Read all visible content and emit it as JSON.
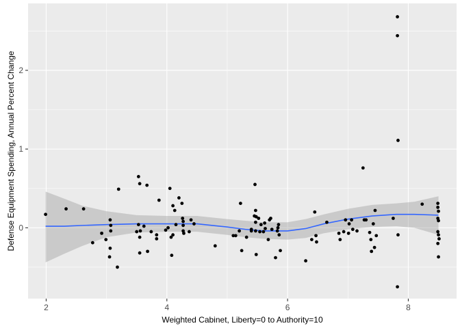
{
  "chart_data": {
    "type": "scatter",
    "title": "",
    "xlabel": "Weighted Cabinet, Liberty=0 to Authority=10",
    "ylabel": "Defense Equipment Spending, Annual Percent Change",
    "xlim": [
      1.7,
      8.8
    ],
    "ylim": [
      -0.9,
      2.85
    ],
    "x_ticks": [
      2,
      4,
      6,
      8
    ],
    "y_ticks": [
      0,
      1,
      2
    ],
    "grid": true,
    "legend": "none",
    "colors": {
      "panel": "#ebebeb",
      "grid": "#ffffff",
      "points": "#000000",
      "smooth_line": "#3366ff",
      "ribbon": "#999999"
    },
    "points": [
      [
        1.99,
        0.17
      ],
      [
        2.33,
        0.24
      ],
      [
        2.62,
        0.24
      ],
      [
        2.77,
        -0.19
      ],
      [
        2.92,
        -0.07
      ],
      [
        2.99,
        -0.15
      ],
      [
        3.05,
        -0.37
      ],
      [
        3.06,
        0.1
      ],
      [
        3.07,
        -0.04
      ],
      [
        3.07,
        0.03
      ],
      [
        3.06,
        -0.26
      ],
      [
        3.18,
        -0.5
      ],
      [
        3.2,
        0.49
      ],
      [
        3.5,
        -0.05
      ],
      [
        3.53,
        0.04
      ],
      [
        3.53,
        0.65
      ],
      [
        3.55,
        0.56
      ],
      [
        3.55,
        -0.12
      ],
      [
        3.55,
        -0.32
      ],
      [
        3.56,
        -0.04
      ],
      [
        3.62,
        0.02
      ],
      [
        3.67,
        0.54
      ],
      [
        3.68,
        -0.3
      ],
      [
        3.74,
        -0.05
      ],
      [
        3.83,
        -0.09
      ],
      [
        3.83,
        -0.14
      ],
      [
        3.87,
        0.35
      ],
      [
        3.98,
        -0.03
      ],
      [
        4.02,
        0.0
      ],
      [
        4.05,
        0.5
      ],
      [
        4.07,
        -0.12
      ],
      [
        4.08,
        -0.35
      ],
      [
        4.1,
        0.28
      ],
      [
        4.1,
        -0.09
      ],
      [
        4.13,
        0.22
      ],
      [
        4.15,
        0.04
      ],
      [
        4.2,
        0.38
      ],
      [
        4.25,
        0.31
      ],
      [
        4.26,
        0.12
      ],
      [
        4.27,
        0.08
      ],
      [
        4.27,
        0.03
      ],
      [
        4.27,
        -0.04
      ],
      [
        4.28,
        -0.07
      ],
      [
        4.37,
        -0.05
      ],
      [
        4.4,
        0.1
      ],
      [
        4.45,
        0.05
      ],
      [
        4.8,
        -0.23
      ],
      [
        5.1,
        -0.1
      ],
      [
        5.14,
        -0.1
      ],
      [
        5.2,
        -0.04
      ],
      [
        5.22,
        0.31
      ],
      [
        5.24,
        -0.29
      ],
      [
        5.32,
        -0.12
      ],
      [
        5.4,
        -0.04
      ],
      [
        5.4,
        -0.02
      ],
      [
        5.45,
        0.15
      ],
      [
        5.46,
        0.55
      ],
      [
        5.47,
        0.22
      ],
      [
        5.48,
        0.14
      ],
      [
        5.47,
        0.07
      ],
      [
        5.47,
        -0.04
      ],
      [
        5.48,
        -0.34
      ],
      [
        5.52,
        0.12
      ],
      [
        5.54,
        -0.05
      ],
      [
        5.56,
        0.04
      ],
      [
        5.6,
        -0.05
      ],
      [
        5.62,
        0.06
      ],
      [
        5.63,
        -0.01
      ],
      [
        5.68,
        -0.15
      ],
      [
        5.7,
        0.1
      ],
      [
        5.72,
        0.12
      ],
      [
        5.74,
        -0.02
      ],
      [
        5.8,
        -0.38
      ],
      [
        5.83,
        -0.04
      ],
      [
        5.84,
        0.0
      ],
      [
        5.85,
        0.04
      ],
      [
        5.86,
        -0.09
      ],
      [
        5.88,
        -0.29
      ],
      [
        6.3,
        -0.42
      ],
      [
        6.4,
        -0.15
      ],
      [
        6.45,
        0.2
      ],
      [
        6.47,
        -0.1
      ],
      [
        6.48,
        -0.18
      ],
      [
        6.65,
        0.07
      ],
      [
        6.85,
        -0.07
      ],
      [
        6.87,
        -0.15
      ],
      [
        6.93,
        -0.05
      ],
      [
        6.96,
        0.1
      ],
      [
        7.01,
        -0.07
      ],
      [
        7.02,
        0.05
      ],
      [
        7.06,
        0.1
      ],
      [
        7.08,
        -0.02
      ],
      [
        7.15,
        -0.04
      ],
      [
        7.25,
        0.76
      ],
      [
        7.27,
        0.1
      ],
      [
        7.3,
        0.1
      ],
      [
        7.36,
        -0.06
      ],
      [
        7.38,
        -0.15
      ],
      [
        7.39,
        -0.3
      ],
      [
        7.42,
        0.05
      ],
      [
        7.44,
        -0.25
      ],
      [
        7.45,
        0.22
      ],
      [
        7.47,
        -0.1
      ],
      [
        7.75,
        0.12
      ],
      [
        7.82,
        2.68
      ],
      [
        7.82,
        2.44
      ],
      [
        7.83,
        1.11
      ],
      [
        7.83,
        -0.09
      ],
      [
        7.82,
        -0.75
      ],
      [
        8.23,
        0.3
      ],
      [
        8.49,
        0.31
      ],
      [
        8.49,
        0.26
      ],
      [
        8.5,
        0.21
      ],
      [
        8.49,
        0.12
      ],
      [
        8.5,
        0.09
      ],
      [
        8.49,
        -0.05
      ],
      [
        8.5,
        -0.09
      ],
      [
        8.51,
        -0.14
      ],
      [
        8.49,
        -0.2
      ],
      [
        8.5,
        -0.37
      ]
    ],
    "smooth": {
      "x": [
        1.99,
        2.3,
        2.6,
        3.0,
        3.5,
        4.0,
        4.5,
        5.0,
        5.3,
        5.6,
        6.0,
        6.3,
        6.6,
        7.0,
        7.4,
        7.8,
        8.1,
        8.5
      ],
      "y": [
        0.02,
        0.02,
        0.03,
        0.04,
        0.05,
        0.05,
        0.05,
        0.01,
        -0.02,
        -0.04,
        -0.04,
        -0.01,
        0.05,
        0.11,
        0.15,
        0.17,
        0.17,
        0.16
      ],
      "lower": [
        -0.44,
        -0.33,
        -0.23,
        -0.12,
        -0.06,
        -0.05,
        -0.05,
        -0.09,
        -0.12,
        -0.14,
        -0.15,
        -0.13,
        -0.07,
        -0.02,
        0.01,
        0.02,
        0.0,
        -0.09
      ],
      "upper": [
        0.46,
        0.37,
        0.28,
        0.21,
        0.16,
        0.15,
        0.15,
        0.11,
        0.09,
        0.07,
        0.07,
        0.11,
        0.17,
        0.24,
        0.29,
        0.31,
        0.33,
        0.4
      ]
    }
  }
}
